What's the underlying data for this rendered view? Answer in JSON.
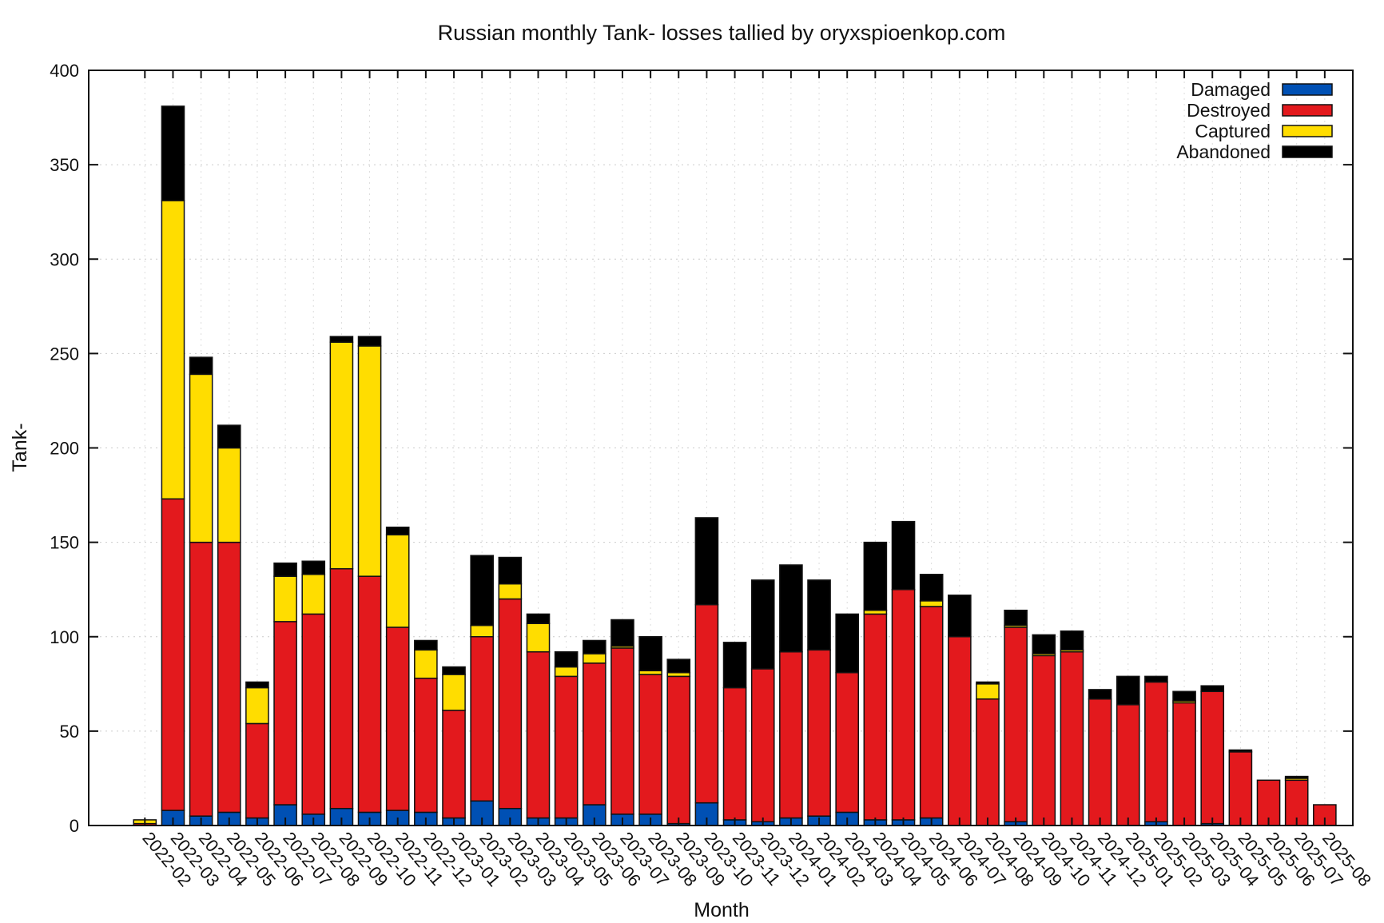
{
  "chart_data": {
    "type": "bar",
    "stacked": true,
    "title": "Russian monthly Tank- losses tallied by oryxspioenkop.com",
    "xlabel": "Month",
    "ylabel": "Tank-",
    "ylim": [
      0,
      400
    ],
    "yticks": [
      0,
      50,
      100,
      150,
      200,
      250,
      300,
      350,
      400
    ],
    "grid": true,
    "legend_position": "top-right",
    "categories": [
      "2022-02",
      "2022-03",
      "2022-04",
      "2022-05",
      "2022-06",
      "2022-07",
      "2022-08",
      "2022-09",
      "2022-10",
      "2022-11",
      "2022-12",
      "2023-01",
      "2023-02",
      "2023-03",
      "2023-04",
      "2023-05",
      "2023-06",
      "2023-07",
      "2023-08",
      "2023-09",
      "2023-10",
      "2023-11",
      "2023-12",
      "2024-01",
      "2024-02",
      "2024-03",
      "2024-04",
      "2024-05",
      "2024-06",
      "2024-07",
      "2024-08",
      "2024-09",
      "2024-10",
      "2024-11",
      "2024-12",
      "2025-01",
      "2025-02",
      "2025-03",
      "2025-04",
      "2025-05",
      "2025-06",
      "2025-07",
      "2025-08"
    ],
    "series": [
      {
        "name": "Damaged",
        "color": "#0050b4",
        "values": [
          0,
          8,
          5,
          7,
          4,
          11,
          6,
          9,
          7,
          8,
          7,
          4,
          13,
          9,
          4,
          4,
          11,
          6,
          6,
          1,
          12,
          3,
          2,
          4,
          5,
          7,
          3,
          3,
          4,
          0,
          0,
          2,
          0,
          0,
          0,
          0,
          2,
          0,
          1,
          0,
          0,
          0,
          0
        ]
      },
      {
        "name": "Destroyed",
        "color": "#e3191d",
        "values": [
          1,
          165,
          145,
          143,
          50,
          97,
          106,
          127,
          125,
          97,
          71,
          57,
          87,
          111,
          88,
          75,
          75,
          88,
          74,
          78,
          105,
          70,
          81,
          88,
          88,
          74,
          109,
          122,
          112,
          100,
          67,
          103,
          90,
          92,
          67,
          64,
          74,
          65,
          70,
          39,
          24,
          24,
          11
        ]
      },
      {
        "name": "Captured",
        "color": "#ffdd00",
        "values": [
          2,
          158,
          89,
          50,
          19,
          24,
          21,
          120,
          122,
          49,
          15,
          19,
          6,
          8,
          15,
          5,
          5,
          1,
          2,
          2,
          0,
          0,
          0,
          0,
          0,
          0,
          2,
          0,
          3,
          0,
          8,
          1,
          1,
          1,
          0,
          0,
          0,
          1,
          0,
          0,
          0,
          1,
          0
        ]
      },
      {
        "name": "Abandoned",
        "color": "#000000",
        "values": [
          0,
          50,
          9,
          12,
          3,
          7,
          7,
          3,
          5,
          4,
          5,
          4,
          37,
          14,
          5,
          8,
          7,
          14,
          18,
          7,
          46,
          24,
          47,
          46,
          37,
          31,
          36,
          36,
          14,
          22,
          1,
          8,
          10,
          10,
          5,
          15,
          3,
          5,
          3,
          1,
          0,
          1,
          0
        ]
      }
    ]
  }
}
